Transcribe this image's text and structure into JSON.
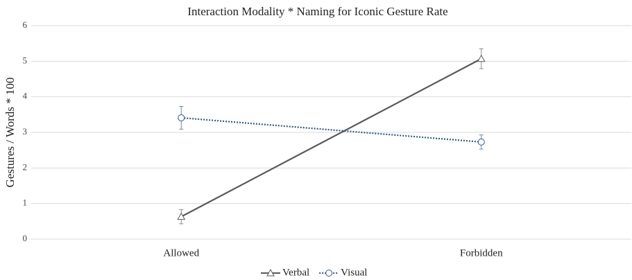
{
  "chart_data": {
    "type": "line",
    "title": "Interaction Modality * Naming for Iconic Gesture Rate",
    "y_label": "Gestures / Words * 100",
    "categories": [
      "Allowed",
      "Forbidden"
    ],
    "series": [
      {
        "name": "Verbal",
        "color": "#595959",
        "dash": "solid",
        "marker": "triangle",
        "values": [
          0.63,
          5.07
        ],
        "errors": [
          0.2,
          0.28
        ]
      },
      {
        "name": "Visual",
        "color": "#2e5597",
        "dash": "dotted",
        "marker": "circle",
        "values": [
          3.41,
          2.73
        ],
        "errors": [
          0.32,
          0.2
        ]
      }
    ],
    "ylim": [
      0,
      6
    ],
    "yticks": [
      0,
      1,
      2,
      3,
      4,
      5,
      6
    ],
    "grid": true,
    "legend": "bottom"
  }
}
